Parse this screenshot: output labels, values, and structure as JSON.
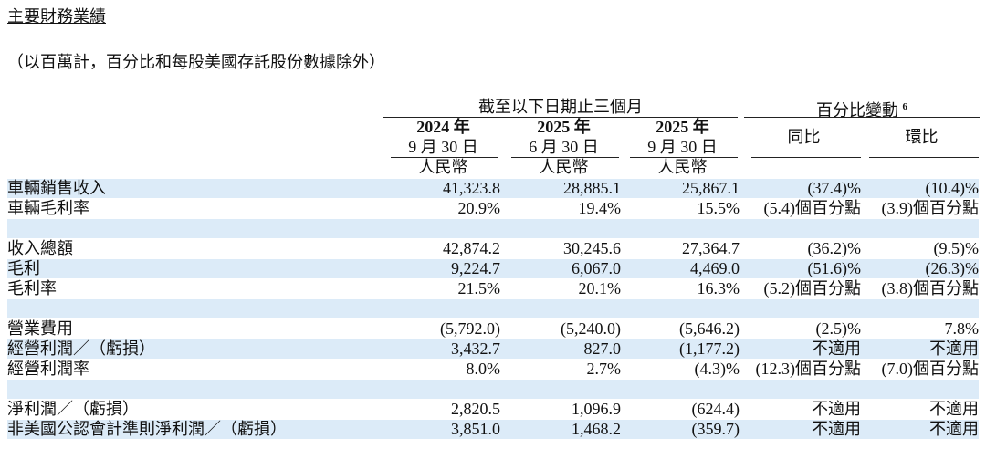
{
  "title": "主要財務業績",
  "subtitle": "（以百萬計，百分比和每股美國存託股份數據除外）",
  "header": {
    "period_group": "截至以下日期止三個月",
    "change_group": "百分比變動",
    "change_note": "6",
    "periods": [
      {
        "year": "2024 年",
        "date": "9 月 30 日",
        "currency": "人民幣"
      },
      {
        "year": "2025 年",
        "date": "6 月 30 日",
        "currency": "人民幣"
      },
      {
        "year": "2025 年",
        "date": "9 月 30 日",
        "currency": "人民幣"
      }
    ],
    "changes": [
      "同比",
      "環比"
    ]
  },
  "groups": [
    [
      {
        "label": "車輛銷售收入",
        "values": [
          "41,323.8",
          "28,885.1",
          "25,867.1",
          "(37.4)%",
          "(10.4)%"
        ]
      },
      {
        "label": "車輛毛利率",
        "values": [
          "20.9%",
          "19.4%",
          "15.5%",
          "(5.4)個百分點",
          "(3.9)個百分點"
        ]
      }
    ],
    [
      {
        "label": "收入總額",
        "values": [
          "42,874.2",
          "30,245.6",
          "27,364.7",
          "(36.2)%",
          "(9.5)%"
        ]
      },
      {
        "label": "毛利",
        "values": [
          "9,224.7",
          "6,067.0",
          "4,469.0",
          "(51.6)%",
          "(26.3)%"
        ]
      },
      {
        "label": "毛利率",
        "values": [
          "21.5%",
          "20.1%",
          "16.3%",
          "(5.2)個百分點",
          "(3.8)個百分點"
        ]
      }
    ],
    [
      {
        "label": "營業費用",
        "values": [
          "(5,792.0)",
          "(5,240.0)",
          "(5,646.2)",
          "(2.5)%",
          "7.8%"
        ]
      },
      {
        "label": "經營利潤／（虧損）",
        "values": [
          "3,432.7",
          "827.0",
          "(1,177.2)",
          "不適用",
          "不適用"
        ]
      },
      {
        "label": "經營利潤率",
        "values": [
          "8.0%",
          "2.7%",
          "(4.3)%",
          "(12.3)個百分點",
          "(7.0)個百分點"
        ]
      }
    ],
    [
      {
        "label": "淨利潤／（虧損）",
        "values": [
          "2,820.5",
          "1,096.9",
          "(624.4)",
          "不適用",
          "不適用"
        ]
      },
      {
        "label": "非美國公認會計準則淨利潤／（虧損）",
        "values": [
          "3,851.0",
          "1,468.2",
          "(359.7)",
          "不適用",
          "不適用"
        ]
      }
    ]
  ]
}
